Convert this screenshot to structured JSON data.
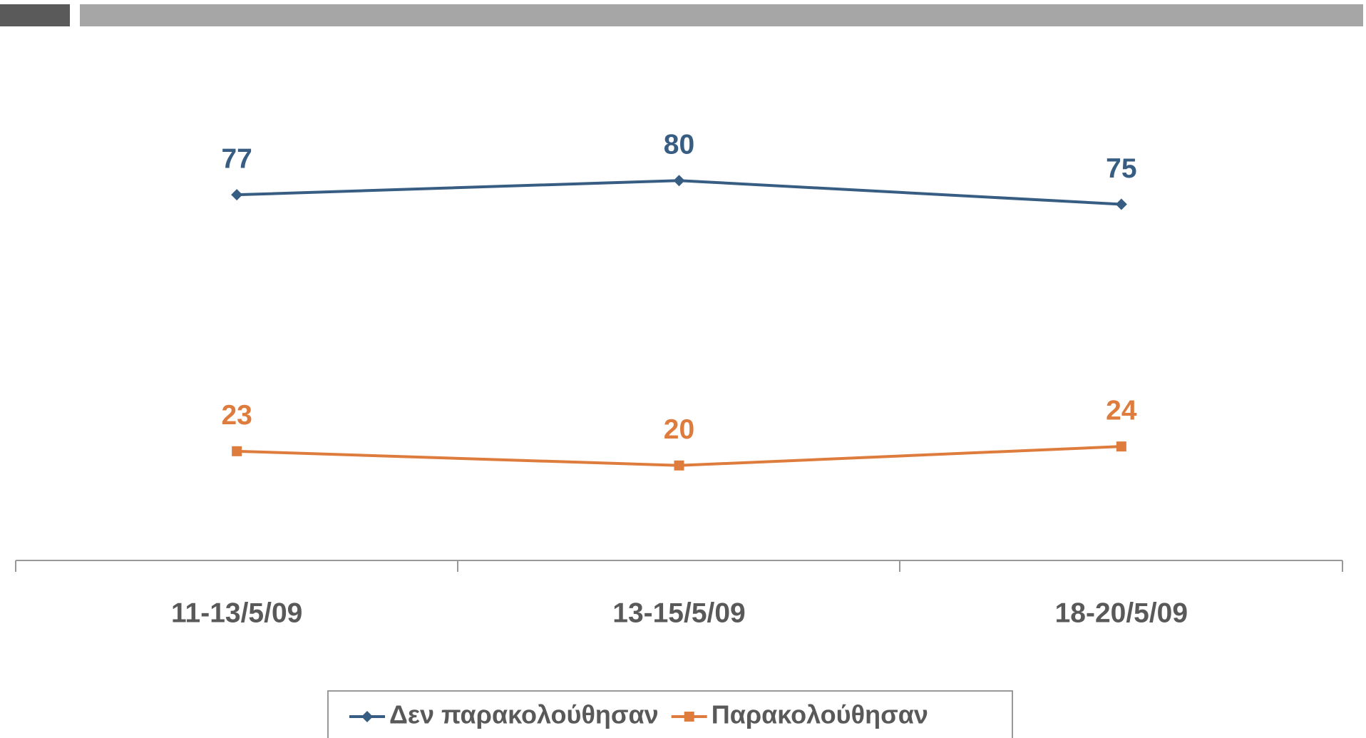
{
  "chart_data": {
    "type": "line",
    "categories": [
      "11-13/5/09",
      "13-15/5/09",
      "18-20/5/09"
    ],
    "series": [
      {
        "name": "Δεν παρακολούθησαν",
        "color": "#385d83",
        "marker": "diamond",
        "values": [
          77,
          80,
          75
        ]
      },
      {
        "name": "Παρακολούθησαν",
        "color": "#dd7c3d",
        "marker": "square",
        "values": [
          23,
          20,
          24
        ]
      }
    ],
    "ylim": [
      0,
      100
    ],
    "legend": "bottom",
    "data_labels": true
  }
}
